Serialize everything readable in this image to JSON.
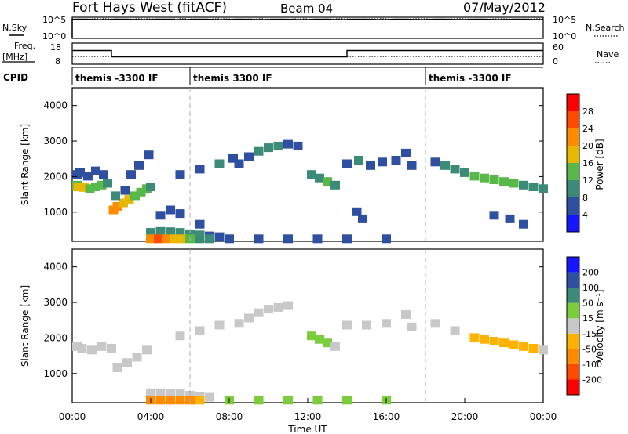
{
  "header": {
    "title": "Fort Hays West (fitACF)",
    "beam": "Beam 04",
    "date": "07/May/2012"
  },
  "noise_panel": {
    "left_label": "N.Sky",
    "left_ticks": [
      "10^5",
      "10^0"
    ],
    "right_label": "N.Search",
    "right_ticks": [
      "10^5",
      "10^0"
    ]
  },
  "freq_panel": {
    "left_label_line1": "Freq.",
    "left_label_line2": "[MHz]",
    "left_ticks": [
      "18",
      "8"
    ],
    "right_label": "Nave",
    "right_ticks": [
      "60",
      "0"
    ]
  },
  "cpid": {
    "label": "CPID",
    "segments": [
      {
        "start": 0,
        "end": 6,
        "text": "themis -3300 IF"
      },
      {
        "start": 6,
        "end": 18,
        "text": "themis 3300 IF"
      },
      {
        "start": 18,
        "end": 24,
        "text": "themis -3300 IF"
      }
    ]
  },
  "axes": {
    "x_ticks": [
      "00:00",
      "04:00",
      "08:00",
      "12:00",
      "16:00",
      "20:00",
      "00:00"
    ],
    "x_label": "Time UT",
    "y_label": "Slant Range [km]",
    "y_ticks": [
      "1000",
      "2000",
      "3000",
      "4000"
    ]
  },
  "colorbars": {
    "power": {
      "label": "Power [dB]",
      "ticks": [
        "4",
        "8",
        "12",
        "16",
        "20",
        "24",
        "28"
      ],
      "colors": [
        "#1515ff",
        "#2f4fa0",
        "#3c8a78",
        "#58b84a",
        "#e8b800",
        "#ff8c00",
        "#ff4a00",
        "#ff0000"
      ]
    },
    "velocity": {
      "label": "Velocity [m s⁻¹]",
      "ticks": [
        "-200",
        "-100",
        "-50",
        "-15",
        "15",
        "50",
        "100",
        "200"
      ],
      "colors": [
        "#ff0000",
        "#ff4a00",
        "#ff8c00",
        "#ffb300",
        "#c8c8c8",
        "#7ccd3c",
        "#3c8a78",
        "#2f4fa0",
        "#1515ff"
      ]
    }
  },
  "chart_data": {
    "type": "heatmap",
    "title": "Fort Hays West (fitACF)",
    "xlabel": "Time UT",
    "ylabel": "Slant Range [km]",
    "xlim": [
      0,
      24
    ],
    "ylim": [
      180,
      4500
    ],
    "noise": {
      "nsky_level_log10": 4.5,
      "nsearch_level_log10": 4.6
    },
    "frequency_MHz": [
      {
        "start": 0,
        "end": 2,
        "value": 14.5
      },
      {
        "start": 2,
        "end": 14,
        "value": 11.5
      },
      {
        "start": 14,
        "end": 24,
        "value": 14.5
      }
    ],
    "nave": 22,
    "series": [
      {
        "name": "Power [dB]",
        "cells": [
          [
            0.0,
            1750,
            14
          ],
          [
            0.3,
            1700,
            16
          ],
          [
            0.6,
            1680,
            17
          ],
          [
            0.9,
            1650,
            15
          ],
          [
            1.2,
            1700,
            13
          ],
          [
            1.5,
            1750,
            12
          ],
          [
            1.8,
            1800,
            10
          ],
          [
            0.0,
            2050,
            6
          ],
          [
            0.4,
            2100,
            5
          ],
          [
            0.8,
            2000,
            6
          ],
          [
            1.2,
            2150,
            5
          ],
          [
            1.6,
            2050,
            6
          ],
          [
            2.1,
            1050,
            22
          ],
          [
            2.3,
            1150,
            20
          ],
          [
            2.6,
            1250,
            18
          ],
          [
            2.9,
            1350,
            17
          ],
          [
            3.2,
            1450,
            15
          ],
          [
            3.5,
            1550,
            14
          ],
          [
            3.8,
            1650,
            12
          ],
          [
            4.0,
            1700,
            10
          ],
          [
            2.2,
            1450,
            8
          ],
          [
            2.7,
            1600,
            7
          ],
          [
            3.0,
            2050,
            6
          ],
          [
            3.4,
            2300,
            5
          ],
          [
            3.9,
            2600,
            5
          ],
          [
            4.0,
            420,
            9
          ],
          [
            4.5,
            450,
            10
          ],
          [
            5.0,
            440,
            9
          ],
          [
            5.5,
            420,
            8
          ],
          [
            6.0,
            380,
            9
          ],
          [
            6.5,
            350,
            8
          ],
          [
            7.0,
            320,
            7
          ],
          [
            7.5,
            300,
            6
          ],
          [
            4.5,
            900,
            6
          ],
          [
            5.0,
            1050,
            5
          ],
          [
            5.5,
            950,
            6
          ],
          [
            6.5,
            650,
            5
          ],
          [
            4.0,
            240,
            20
          ],
          [
            4.4,
            240,
            24
          ],
          [
            4.8,
            240,
            22
          ],
          [
            5.2,
            240,
            18
          ],
          [
            5.6,
            240,
            16
          ],
          [
            6.0,
            240,
            14
          ],
          [
            6.5,
            240,
            10
          ],
          [
            7.0,
            240,
            8
          ],
          [
            8.0,
            240,
            6
          ],
          [
            9.5,
            240,
            5
          ],
          [
            11,
            240,
            6
          ],
          [
            12.5,
            240,
            5
          ],
          [
            14,
            240,
            6
          ],
          [
            16,
            240,
            5
          ],
          [
            5.5,
            2050,
            6
          ],
          [
            6.5,
            2200,
            7
          ],
          [
            7.5,
            2350,
            8
          ],
          [
            8.2,
            2500,
            7
          ],
          [
            8.5,
            2350,
            6
          ],
          [
            9.0,
            2550,
            7
          ],
          [
            9.5,
            2700,
            8
          ],
          [
            10.0,
            2800,
            9
          ],
          [
            10.5,
            2850,
            8
          ],
          [
            11.0,
            2900,
            7
          ],
          [
            11.5,
            2850,
            6
          ],
          [
            12.2,
            2050,
            9
          ],
          [
            12.6,
            1950,
            11
          ],
          [
            13.0,
            1850,
            12
          ],
          [
            13.4,
            1750,
            10
          ],
          [
            14.0,
            2350,
            7
          ],
          [
            14.6,
            2450,
            8
          ],
          [
            15.2,
            2300,
            7
          ],
          [
            15.8,
            2400,
            6
          ],
          [
            16.5,
            2450,
            7
          ],
          [
            17.0,
            2650,
            6
          ],
          [
            17.3,
            2300,
            6
          ],
          [
            18.5,
            2400,
            7
          ],
          [
            19.0,
            2300,
            8
          ],
          [
            19.5,
            2200,
            9
          ],
          [
            20.0,
            2100,
            10
          ],
          [
            20.5,
            2000,
            12
          ],
          [
            21.0,
            1950,
            13
          ],
          [
            21.5,
            1900,
            14
          ],
          [
            22.0,
            1850,
            13
          ],
          [
            22.5,
            1800,
            12
          ],
          [
            23.0,
            1750,
            11
          ],
          [
            23.5,
            1700,
            10
          ],
          [
            24,
            1650,
            9
          ],
          [
            21.5,
            900,
            5
          ],
          [
            22.3,
            800,
            6
          ],
          [
            23.0,
            650,
            5
          ],
          [
            14.5,
            1000,
            5
          ],
          [
            14.8,
            800,
            6
          ]
        ]
      },
      {
        "name": "Velocity [m s⁻¹]",
        "cells": [
          [
            0.0,
            1750,
            0
          ],
          [
            0.5,
            1700,
            0
          ],
          [
            1.0,
            1650,
            5
          ],
          [
            1.5,
            1750,
            0
          ],
          [
            2.0,
            1700,
            -5
          ],
          [
            2.3,
            1150,
            0
          ],
          [
            2.8,
            1300,
            -5
          ],
          [
            3.3,
            1450,
            0
          ],
          [
            3.8,
            1650,
            0
          ],
          [
            4.0,
            450,
            0
          ],
          [
            4.5,
            450,
            -5
          ],
          [
            5.0,
            430,
            0
          ],
          [
            5.5,
            420,
            5
          ],
          [
            6.0,
            380,
            0
          ],
          [
            6.5,
            350,
            0
          ],
          [
            7.0,
            320,
            -5
          ],
          [
            4.0,
            240,
            -60
          ],
          [
            4.5,
            240,
            -80
          ],
          [
            5.0,
            240,
            -70
          ],
          [
            5.5,
            240,
            -60
          ],
          [
            6.0,
            240,
            -50
          ],
          [
            6.5,
            240,
            -40
          ],
          [
            8.0,
            240,
            30
          ],
          [
            9.5,
            240,
            25
          ],
          [
            11,
            240,
            30
          ],
          [
            12.5,
            240,
            25
          ],
          [
            14,
            240,
            30
          ],
          [
            16,
            240,
            25
          ],
          [
            5.5,
            2050,
            0
          ],
          [
            6.5,
            2200,
            5
          ],
          [
            7.5,
            2350,
            0
          ],
          [
            8.5,
            2400,
            0
          ],
          [
            9.0,
            2550,
            0
          ],
          [
            9.5,
            2700,
            5
          ],
          [
            10.0,
            2800,
            0
          ],
          [
            10.5,
            2850,
            0
          ],
          [
            11.0,
            2900,
            -5
          ],
          [
            12.2,
            2050,
            20
          ],
          [
            12.6,
            1950,
            25
          ],
          [
            13.0,
            1850,
            20
          ],
          [
            13.4,
            1750,
            15
          ],
          [
            14.0,
            2350,
            0
          ],
          [
            15.0,
            2350,
            5
          ],
          [
            16.0,
            2400,
            0
          ],
          [
            17.0,
            2650,
            0
          ],
          [
            17.3,
            2300,
            0
          ],
          [
            18.5,
            2400,
            0
          ],
          [
            19.5,
            2200,
            -5
          ],
          [
            20.5,
            2000,
            -20
          ],
          [
            21.0,
            1950,
            -25
          ],
          [
            21.5,
            1900,
            -20
          ],
          [
            22.0,
            1850,
            -15
          ],
          [
            22.5,
            1800,
            -20
          ],
          [
            23.0,
            1750,
            -25
          ],
          [
            23.5,
            1700,
            -15
          ],
          [
            24,
            1650,
            -10
          ]
        ]
      }
    ]
  }
}
